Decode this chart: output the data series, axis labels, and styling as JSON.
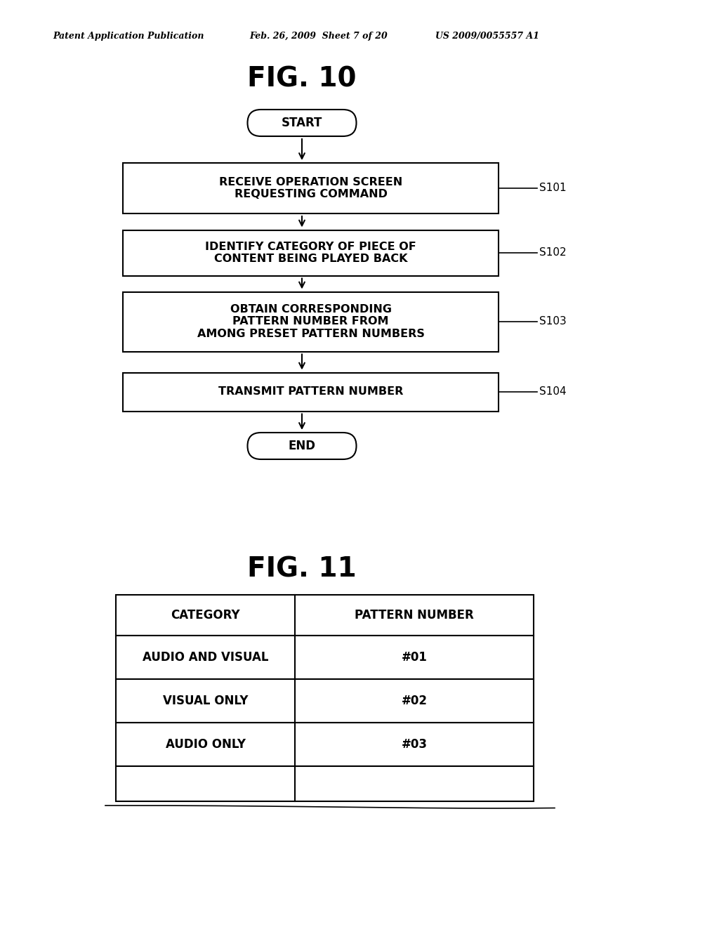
{
  "bg_color": "#ffffff",
  "header_line1": "Patent Application Publication",
  "header_line2": "Feb. 26, 2009  Sheet 7 of 20",
  "header_line3": "US 2009/0055557 A1",
  "fig10_title": "FIG. 10",
  "fig11_title": "FIG. 11",
  "flowchart": {
    "start_label": "START",
    "end_label": "END",
    "steps": [
      {
        "label": "RECEIVE OPERATION SCREEN\nREQUESTING COMMAND",
        "step_id": "S101"
      },
      {
        "label": "IDENTIFY CATEGORY OF PIECE OF\nCONTENT BEING PLAYED BACK",
        "step_id": "S102"
      },
      {
        "label": "OBTAIN CORRESPONDING\nPATTERN NUMBER FROM\nAMONG PRESET PATTERN NUMBERS",
        "step_id": "S103"
      },
      {
        "label": "TRANSMIT PATTERN NUMBER",
        "step_id": "S104"
      }
    ]
  },
  "table": {
    "col_headers": [
      "CATEGORY",
      "PATTERN NUMBER"
    ],
    "rows": [
      [
        "AUDIO AND VISUAL",
        "#01"
      ],
      [
        "VISUAL ONLY",
        "#02"
      ],
      [
        "AUDIO ONLY",
        "#03"
      ],
      [
        "",
        ""
      ]
    ]
  }
}
